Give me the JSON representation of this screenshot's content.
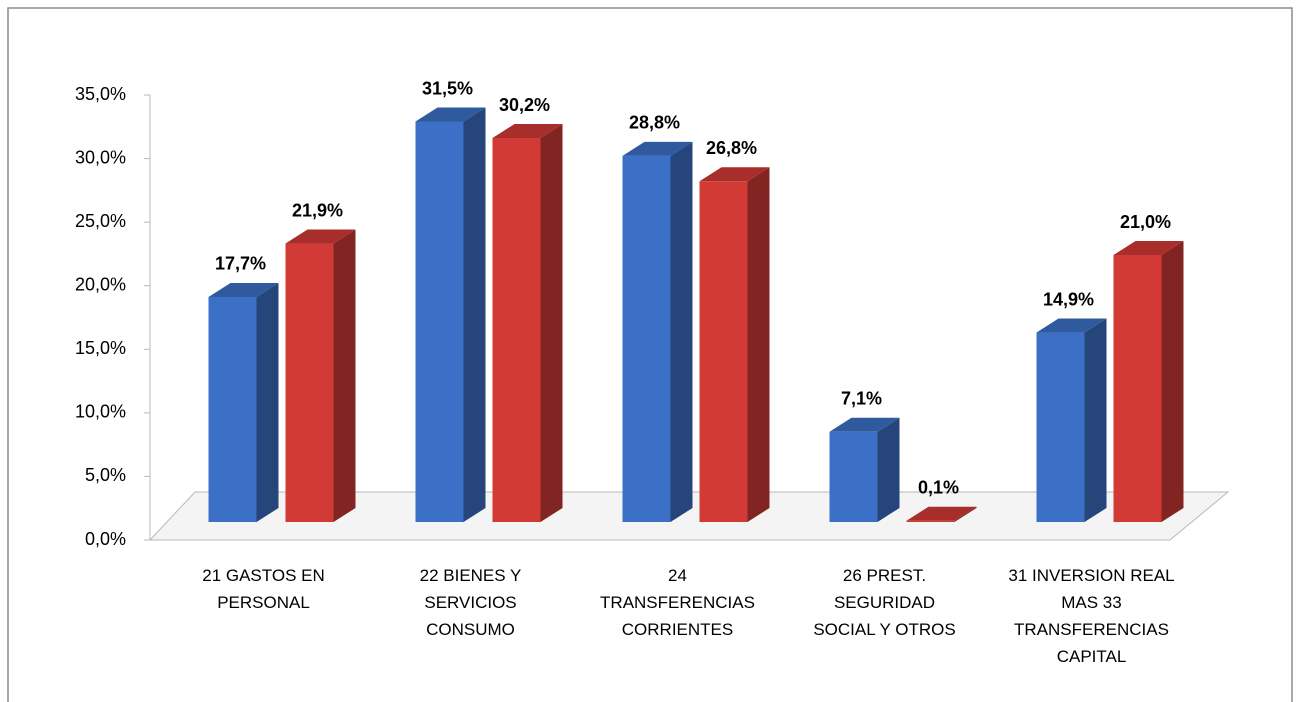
{
  "chart_data": {
    "type": "bar3d",
    "categories": [
      "21 GASTOS EN PERSONAL",
      "22 BIENES Y SERVICIOS CONSUMO",
      "24 TRANSFERENCIAS CORRIENTES",
      "26 PREST. SEGURIDAD SOCIAL Y OTROS",
      "31 INVERSION REAL MAS 33 TRANSFERENCIAS CAPITAL"
    ],
    "series": [
      {
        "color": "#3b70c6",
        "values": [
          17.7,
          31.5,
          28.8,
          7.1,
          14.9
        ],
        "value_labels": [
          "17,7%",
          "31,5%",
          "28,8%",
          "7,1%",
          "14,9%"
        ]
      },
      {
        "color": "#d23a36",
        "values": [
          21.9,
          30.2,
          26.8,
          0.1,
          21.0
        ],
        "value_labels": [
          "21,9%",
          "30,2%",
          "26,8%",
          "0,1%",
          "21,0%"
        ]
      }
    ],
    "ylim": [
      0,
      35
    ],
    "yticks": [
      {
        "value": 0,
        "label": "0,0%"
      },
      {
        "value": 5,
        "label": "5,0%"
      },
      {
        "value": 10,
        "label": "10,0%"
      },
      {
        "value": 15,
        "label": "15,0%"
      },
      {
        "value": 20,
        "label": "20,0%"
      },
      {
        "value": 25,
        "label": "25,0%"
      },
      {
        "value": 30,
        "label": "30,0%"
      },
      {
        "value": 35,
        "label": "35,0%"
      }
    ],
    "grid": false
  }
}
